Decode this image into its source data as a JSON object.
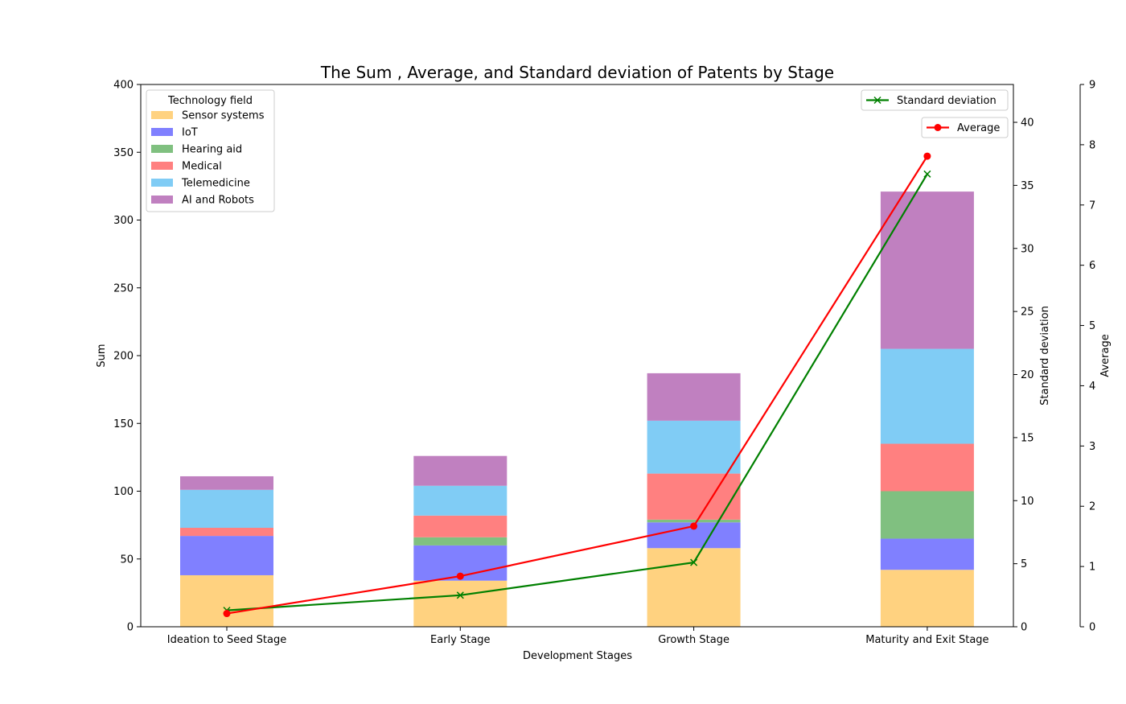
{
  "chart_data": {
    "type": "bar",
    "title": "The Sum , Average, and Standard deviation of Patents by Stage",
    "xlabel": "Development Stages",
    "ylabel": "Sum",
    "ylabel_std": "Standard deviation",
    "ylabel_avg": "Average",
    "ylim": [
      0,
      400
    ],
    "ylim_std": [
      0,
      43
    ],
    "ylim_avg": [
      0,
      9
    ],
    "yticks": [
      0,
      50,
      100,
      150,
      200,
      250,
      300,
      350,
      400
    ],
    "yticks_std": [
      0,
      5,
      10,
      15,
      20,
      25,
      30,
      35,
      40
    ],
    "yticks_avg": [
      0,
      1,
      2,
      3,
      4,
      5,
      6,
      7,
      8,
      9
    ],
    "grid": false,
    "categories": [
      "Ideation to Seed Stage",
      "Early Stage",
      "Growth Stage",
      "Maturity and Exit Stage"
    ],
    "legend_title": "Technology field",
    "legend_position": "top-left",
    "series": [
      {
        "name": "Sensor systems",
        "color": "#ffd280",
        "values": [
          38,
          34,
          58,
          42
        ]
      },
      {
        "name": "IoT",
        "color": "#8080ff",
        "values": [
          29,
          26,
          19,
          23
        ]
      },
      {
        "name": "Hearing aid",
        "color": "#80c080",
        "values": [
          0,
          6,
          2,
          35
        ]
      },
      {
        "name": "Medical",
        "color": "#ff8080",
        "values": [
          6,
          16,
          34,
          35
        ]
      },
      {
        "name": "Telemedicine",
        "color": "#80ccf5",
        "values": [
          28,
          22,
          39,
          70
        ]
      },
      {
        "name": "AI and Robots",
        "color": "#c080c0",
        "values": [
          10,
          22,
          35,
          116
        ]
      }
    ],
    "lines": [
      {
        "name": "Standard deviation",
        "axis": "std",
        "color": "#008000",
        "marker": "x",
        "values": [
          1.3,
          2.5,
          5.1,
          35.9
        ],
        "legend_position": "top-right"
      },
      {
        "name": "Average",
        "axis": "avg",
        "color": "#ff0000",
        "marker": "o",
        "values": [
          0.22,
          0.84,
          1.67,
          7.81
        ],
        "legend_position": "top-right"
      }
    ]
  }
}
